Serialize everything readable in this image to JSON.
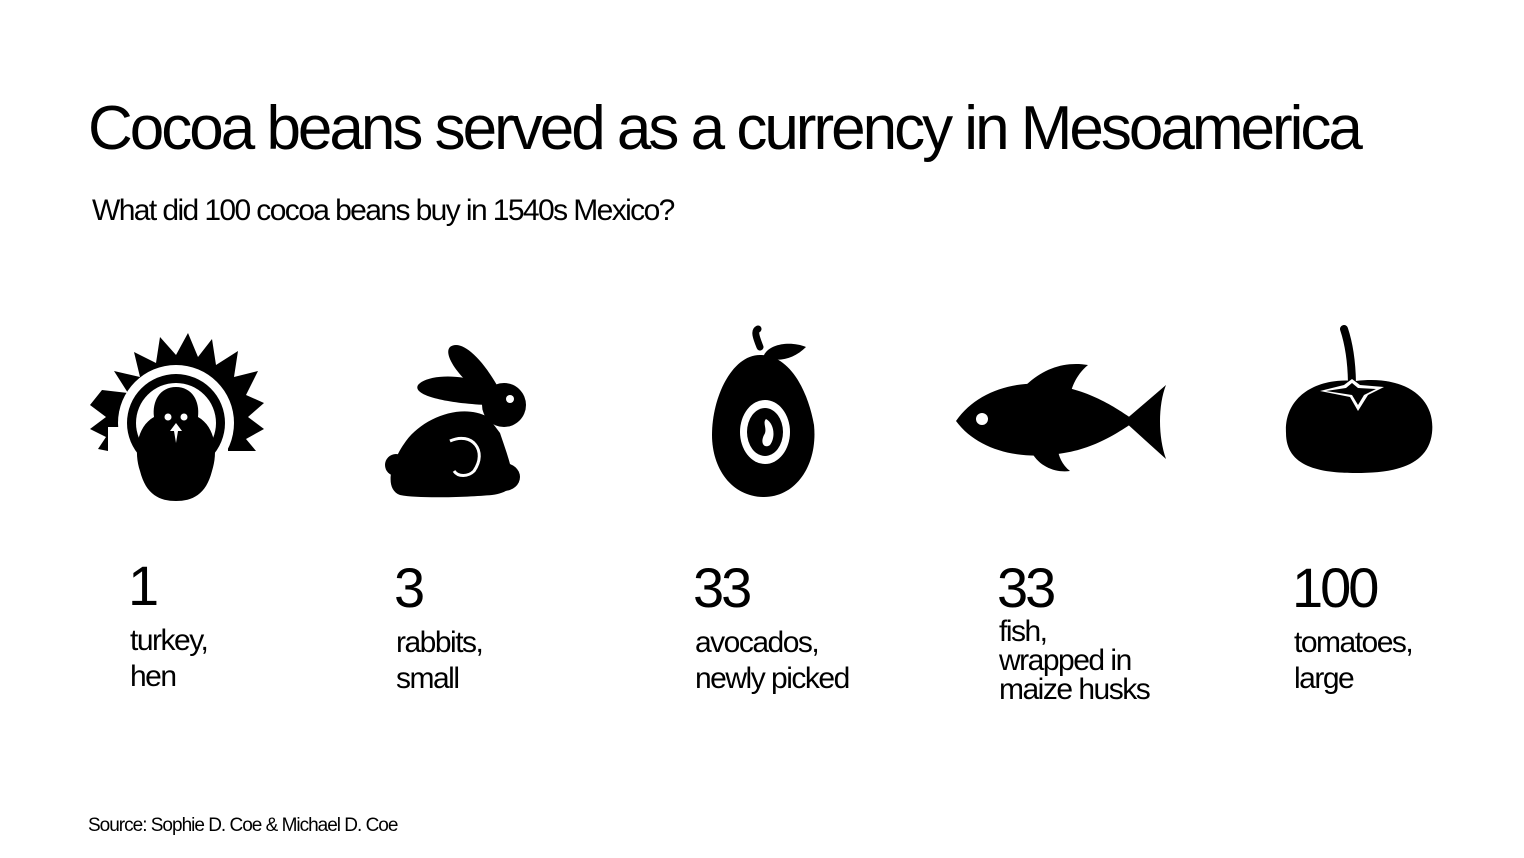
{
  "title": "Cocoa beans served as a currency in Mesoamerica",
  "subtitle": "What did 100 cocoa beans buy in 1540s Mexico?",
  "items": [
    {
      "icon": "turkey-icon",
      "quantity": "1",
      "lines": [
        "turkey,",
        "hen"
      ]
    },
    {
      "icon": "rabbit-icon",
      "quantity": "3",
      "lines": [
        "rabbits,",
        "small"
      ]
    },
    {
      "icon": "avocado-icon",
      "quantity": "33",
      "lines": [
        "avocados,",
        "newly picked"
      ]
    },
    {
      "icon": "fish-icon",
      "quantity": "33",
      "lines": [
        "fish,",
        "wrapped in",
        "maize husks"
      ]
    },
    {
      "icon": "tomato-icon",
      "quantity": "100",
      "lines": [
        "tomatoes,",
        "large"
      ]
    }
  ],
  "source": "Source: Sophie D. Coe & Michael D. Coe"
}
